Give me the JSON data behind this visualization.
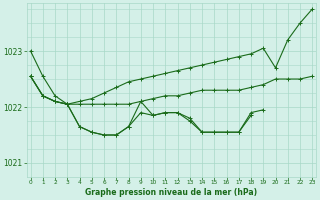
{
  "xlabel": "Graphe pression niveau de la mer (hPa)",
  "background_color": "#d4f0e8",
  "grid_color": "#a8d8c8",
  "line_color": "#1a6b1a",
  "hours": [
    0,
    1,
    2,
    3,
    4,
    5,
    6,
    7,
    8,
    9,
    10,
    11,
    12,
    13,
    14,
    15,
    16,
    17,
    18,
    19,
    20,
    21,
    22,
    23
  ],
  "line1": [
    1023.0,
    1022.55,
    1022.2,
    1022.05,
    1022.1,
    1022.15,
    1022.25,
    1022.35,
    1022.45,
    1022.5,
    1022.55,
    1022.6,
    1022.65,
    1022.7,
    1022.75,
    1022.8,
    1022.85,
    1022.9,
    1022.95,
    1023.05,
    1022.7,
    1023.2,
    1023.5,
    1023.75
  ],
  "line2": [
    1022.55,
    1022.2,
    1022.1,
    1022.05,
    1022.05,
    1022.05,
    1022.05,
    1022.05,
    1022.05,
    1022.1,
    1022.15,
    1022.2,
    1022.2,
    1022.25,
    1022.3,
    1022.3,
    1022.3,
    1022.3,
    1022.35,
    1022.4,
    1022.5,
    1022.5,
    1022.5,
    1022.55
  ],
  "line3": [
    1022.55,
    1022.2,
    1022.1,
    1022.05,
    1021.65,
    1021.55,
    1021.5,
    1021.5,
    1021.65,
    1021.9,
    1021.85,
    1021.9,
    1021.9,
    1021.75,
    1021.55,
    1021.55,
    1021.55,
    1021.55,
    1021.85,
    null,
    null,
    null,
    null,
    null
  ],
  "line4": [
    1022.55,
    1022.2,
    1022.1,
    1022.05,
    1021.65,
    1021.55,
    1021.5,
    1021.5,
    1021.65,
    1022.1,
    1021.85,
    1021.9,
    1021.9,
    1021.8,
    1021.55,
    1021.55,
    1021.55,
    1021.55,
    1021.9,
    1021.95,
    null,
    null,
    null,
    null
  ],
  "ylim": [
    1020.75,
    1023.85
  ],
  "yticks": [
    1021,
    1022,
    1023
  ],
  "xlim": [
    -0.3,
    23.3
  ]
}
